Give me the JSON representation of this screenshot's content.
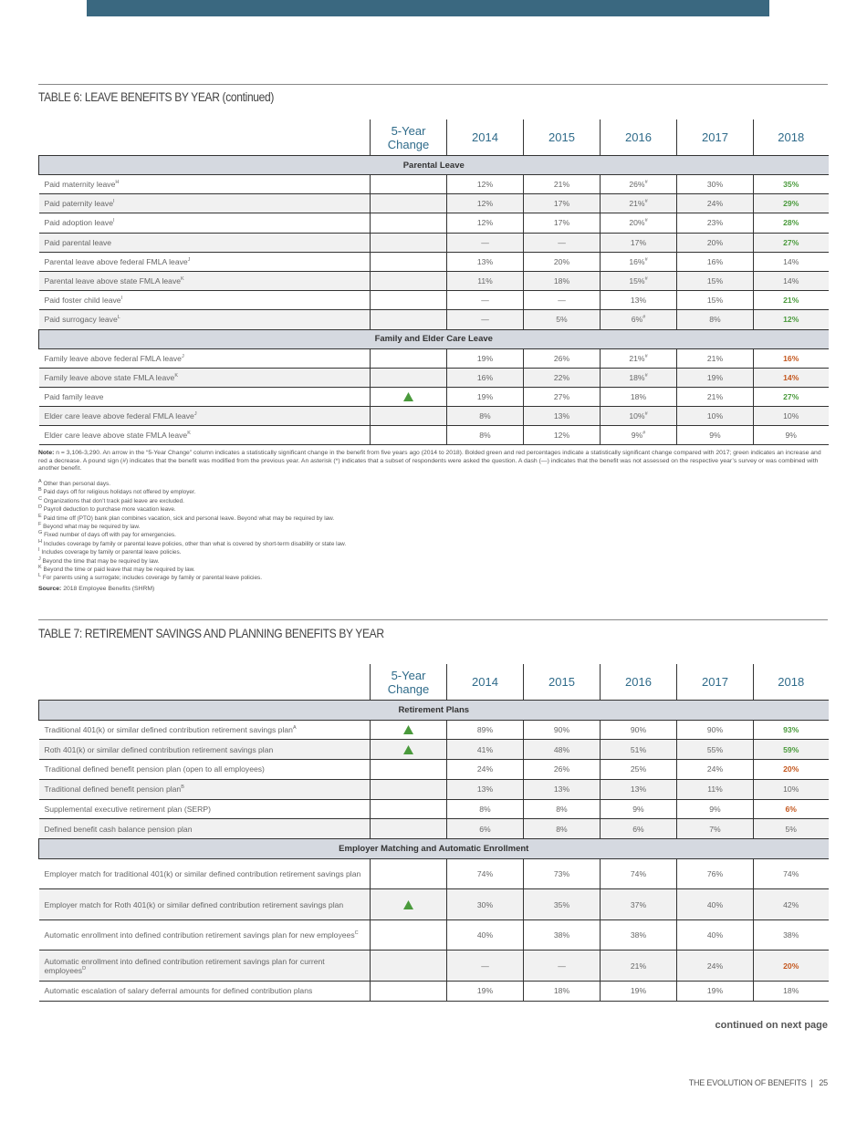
{
  "page": {
    "footer": {
      "publication": "THE EVOLUTION OF BENEFITS",
      "page_number": "25"
    },
    "continued": "continued on next page"
  },
  "table6": {
    "title": "TABLE 6: LEAVE BENEFITS BY YEAR (continued)",
    "change_header": "5-Year Change",
    "columns": [
      "2014",
      "2015",
      "2016",
      "2017",
      "2018"
    ],
    "sections": [
      {
        "name": "Parental Leave",
        "rows": [
          {
            "label": "Paid maternity leave",
            "sup": "H",
            "change": null,
            "values": [
              "12%",
              "21%",
              "26%",
              "30%",
              "35%"
            ],
            "value_sups": [
              null,
              null,
              "#",
              null,
              null
            ],
            "sig_2018": "increase"
          },
          {
            "label": "Paid paternity leave",
            "sup": "I",
            "change": null,
            "values": [
              "12%",
              "17%",
              "21%",
              "24%",
              "29%"
            ],
            "value_sups": [
              null,
              null,
              "#",
              null,
              null
            ],
            "sig_2018": "increase"
          },
          {
            "label": "Paid adoption leave",
            "sup": "I",
            "change": null,
            "values": [
              "12%",
              "17%",
              "20%",
              "23%",
              "28%"
            ],
            "value_sups": [
              null,
              null,
              "#",
              null,
              null
            ],
            "sig_2018": "increase"
          },
          {
            "label": "Paid parental leave",
            "sup": null,
            "change": null,
            "values": [
              "—",
              "—",
              "17%",
              "20%",
              "27%"
            ],
            "value_sups": [
              null,
              null,
              null,
              null,
              null
            ],
            "sig_2018": "increase"
          },
          {
            "label": "Parental leave above federal FMLA leave",
            "sup": "J",
            "change": null,
            "values": [
              "13%",
              "20%",
              "16%",
              "16%",
              "14%"
            ],
            "value_sups": [
              null,
              null,
              "#",
              null,
              null
            ],
            "sig_2018": null
          },
          {
            "label": "Parental leave above state FMLA leave",
            "sup": "K",
            "change": null,
            "values": [
              "11%",
              "18%",
              "15%",
              "15%",
              "14%"
            ],
            "value_sups": [
              null,
              null,
              "#",
              null,
              null
            ],
            "sig_2018": null
          },
          {
            "label": "Paid foster child leave",
            "sup": "I",
            "change": null,
            "values": [
              "—",
              "—",
              "13%",
              "15%",
              "21%"
            ],
            "value_sups": [
              null,
              null,
              null,
              null,
              null
            ],
            "sig_2018": "increase"
          },
          {
            "label": "Paid surrogacy leave",
            "sup": "L",
            "change": null,
            "values": [
              "—",
              "5%",
              "6%",
              "8%",
              "12%"
            ],
            "value_sups": [
              null,
              null,
              "#",
              null,
              null
            ],
            "sig_2018": "increase"
          }
        ]
      },
      {
        "name": "Family and Elder Care Leave",
        "rows": [
          {
            "label": "Family leave above federal FMLA leave",
            "sup": "J",
            "change": null,
            "values": [
              "19%",
              "26%",
              "21%",
              "21%",
              "16%"
            ],
            "value_sups": [
              null,
              null,
              "#",
              null,
              null
            ],
            "sig_2018": "decrease"
          },
          {
            "label": "Family leave above state FMLA leave",
            "sup": "K",
            "change": null,
            "values": [
              "16%",
              "22%",
              "18%",
              "19%",
              "14%"
            ],
            "value_sups": [
              null,
              null,
              "#",
              null,
              null
            ],
            "sig_2018": "decrease"
          },
          {
            "label": "Paid family leave",
            "sup": null,
            "change": "up",
            "values": [
              "19%",
              "27%",
              "18%",
              "21%",
              "27%"
            ],
            "value_sups": [
              null,
              null,
              null,
              null,
              null
            ],
            "sig_2018": "increase"
          },
          {
            "label": "Elder care leave above federal FMLA leave",
            "sup": "J",
            "change": null,
            "values": [
              "8%",
              "13%",
              "10%",
              "10%",
              "10%"
            ],
            "value_sups": [
              null,
              null,
              "#",
              null,
              null
            ],
            "sig_2018": null
          },
          {
            "label": "Elder care leave above state FMLA leave",
            "sup": "K",
            "change": null,
            "values": [
              "8%",
              "12%",
              "9%",
              "9%",
              "9%"
            ],
            "value_sups": [
              null,
              null,
              "#",
              null,
              null
            ],
            "sig_2018": null
          }
        ]
      }
    ],
    "note": {
      "label": "Note:",
      "text": "n = 3,106-3,290. An arrow in the “5-Year Change” column indicates a statistically significant change in the benefit from five years ago (2014 to 2018). Bolded green and red percentages indicate a statistically significant change compared with 2017; green indicates an increase and red a decrease. A pound sign (#) indicates that the benefit was modified from the previous year. An asterisk (*) indicates that a subset of respondents were asked the question. A dash (—) indicates that the benefit was not assessed on the respective year’s survey or was combined with another benefit."
    },
    "footnotes": [
      {
        "mark": "A",
        "text": "Other than personal days."
      },
      {
        "mark": "B",
        "text": "Paid days off for religious holidays not offered by employer."
      },
      {
        "mark": "C",
        "text": "Organizations that don’t track paid leave are excluded."
      },
      {
        "mark": "D",
        "text": "Payroll deduction to purchase more vacation leave."
      },
      {
        "mark": "E",
        "text": "Paid time off (PTO) bank plan combines vacation, sick and personal leave. Beyond what may be required by law."
      },
      {
        "mark": "F",
        "text": "Beyond what may be required by law."
      },
      {
        "mark": "G",
        "text": "Fixed number of days off with pay for emergencies."
      },
      {
        "mark": "H",
        "text": "Includes coverage by family or parental leave policies, other than what is covered by short-term disability or state law."
      },
      {
        "mark": "I",
        "text": "Includes coverage by family or parental leave policies."
      },
      {
        "mark": "J",
        "text": "Beyond the time that may be required by law."
      },
      {
        "mark": "K",
        "text": "Beyond the time or paid leave that may be required by law."
      },
      {
        "mark": "L",
        "text": "For parents using a surrogate; includes coverage by family or parental leave policies."
      }
    ],
    "source": {
      "label": "Source:",
      "text": "2018 Employee Benefits (SHRM)"
    }
  },
  "table7": {
    "title": "TABLE 7: RETIREMENT SAVINGS AND PLANNING BENEFITS BY YEAR",
    "change_header": "5-Year Change",
    "columns": [
      "2014",
      "2015",
      "2016",
      "2017",
      "2018"
    ],
    "sections": [
      {
        "name": "Retirement Plans",
        "rows": [
          {
            "label": "Traditional 401(k) or similar defined contribution retirement savings plan",
            "sup": "A",
            "change": "up",
            "values": [
              "89%",
              "90%",
              "90%",
              "90%",
              "93%"
            ],
            "value_sups": [
              null,
              null,
              null,
              null,
              null
            ],
            "sig_2018": "increase"
          },
          {
            "label": "Roth 401(k) or similar defined contribution retirement savings plan",
            "sup": null,
            "change": "up",
            "values": [
              "41%",
              "48%",
              "51%",
              "55%",
              "59%"
            ],
            "value_sups": [
              null,
              null,
              null,
              null,
              null
            ],
            "sig_2018": "increase"
          },
          {
            "label": "Traditional defined benefit pension plan (open to all employees)",
            "sup": null,
            "change": null,
            "values": [
              "24%",
              "26%",
              "25%",
              "24%",
              "20%"
            ],
            "value_sups": [
              null,
              null,
              null,
              null,
              null
            ],
            "sig_2018": "decrease"
          },
          {
            "label": "Traditional defined benefit pension plan",
            "sup": "B",
            "change": null,
            "values": [
              "13%",
              "13%",
              "13%",
              "11%",
              "10%"
            ],
            "value_sups": [
              null,
              null,
              null,
              null,
              null
            ],
            "sig_2018": null
          },
          {
            "label": "Supplemental executive retirement plan (SERP)",
            "sup": null,
            "change": null,
            "values": [
              "8%",
              "8%",
              "9%",
              "9%",
              "6%"
            ],
            "value_sups": [
              null,
              null,
              null,
              null,
              null
            ],
            "sig_2018": "decrease"
          },
          {
            "label": "Defined benefit cash balance pension plan",
            "sup": null,
            "change": null,
            "values": [
              "6%",
              "8%",
              "6%",
              "7%",
              "5%"
            ],
            "value_sups": [
              null,
              null,
              null,
              null,
              null
            ],
            "sig_2018": null
          }
        ]
      },
      {
        "name": "Employer Matching and Automatic Enrollment",
        "rows": [
          {
            "label": "Employer match for traditional 401(k) or similar defined contribution retirement savings plan",
            "sup": null,
            "change": null,
            "values": [
              "74%",
              "73%",
              "74%",
              "76%",
              "74%"
            ],
            "value_sups": [
              null,
              null,
              null,
              null,
              null
            ],
            "sig_2018": null
          },
          {
            "label": "Employer match for Roth 401(k) or similar defined contribution retirement savings plan",
            "sup": null,
            "change": "up",
            "values": [
              "30%",
              "35%",
              "37%",
              "40%",
              "42%"
            ],
            "value_sups": [
              null,
              null,
              null,
              null,
              null
            ],
            "sig_2018": null
          },
          {
            "label": "Automatic enrollment into defined contribution retirement savings plan for new employees",
            "sup": "C",
            "change": null,
            "values": [
              "40%",
              "38%",
              "38%",
              "40%",
              "38%"
            ],
            "value_sups": [
              null,
              null,
              null,
              null,
              null
            ],
            "sig_2018": null
          },
          {
            "label": "Automatic enrollment into defined contribution retirement savings plan for current employees",
            "sup": "D",
            "change": null,
            "values": [
              "—",
              "—",
              "21%",
              "24%",
              "20%"
            ],
            "value_sups": [
              null,
              null,
              null,
              null,
              null
            ],
            "sig_2018": "decrease"
          },
          {
            "label": "Automatic escalation of salary deferral amounts for defined contribution plans",
            "sup": null,
            "change": null,
            "values": [
              "19%",
              "18%",
              "19%",
              "19%",
              "18%"
            ],
            "value_sups": [
              null,
              null,
              null,
              null,
              null
            ],
            "sig_2018": null
          }
        ]
      }
    ]
  }
}
